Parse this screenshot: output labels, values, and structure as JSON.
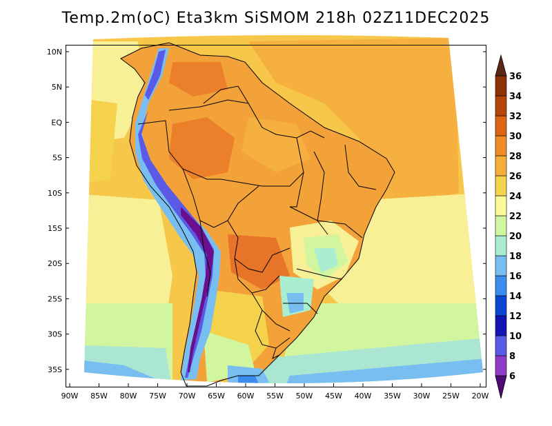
{
  "title": "Temp.2m(oC) Eta3km SiSMOM 218h 02Z11DEC2025",
  "lat_labels": [
    "10N",
    "5N",
    "EQ",
    "5S",
    "10S",
    "15S",
    "20S",
    "25S",
    "30S",
    "35S"
  ],
  "lon_labels": [
    "90W",
    "85W",
    "80W",
    "75W",
    "70W",
    "65W",
    "60W",
    "55W",
    "50W",
    "45W",
    "40W",
    "35W",
    "30W",
    "25W",
    "20W"
  ],
  "colorbar": {
    "labels": [
      "6",
      "8",
      "10",
      "12",
      "14",
      "16",
      "18",
      "20",
      "22",
      "24",
      "26",
      "28",
      "30",
      "32",
      "34",
      "36"
    ],
    "colors": [
      "#6a0f8e",
      "#8e3cc8",
      "#5a5ae6",
      "#1414b4",
      "#0a46d2",
      "#3c8cf0",
      "#78bef0",
      "#aaeed2",
      "#d2f5a0",
      "#fafa96",
      "#f5d24b",
      "#f5af37",
      "#f08c28",
      "#dc6414",
      "#b4460a",
      "#8c3205",
      "#5a2814"
    ],
    "low_color": "#500a78",
    "high_color": "#5a2814"
  },
  "colors": {
    "ocean_base": "#f7c74a",
    "land_base": "#f3a23a",
    "cold_band": "#78bef0"
  }
}
